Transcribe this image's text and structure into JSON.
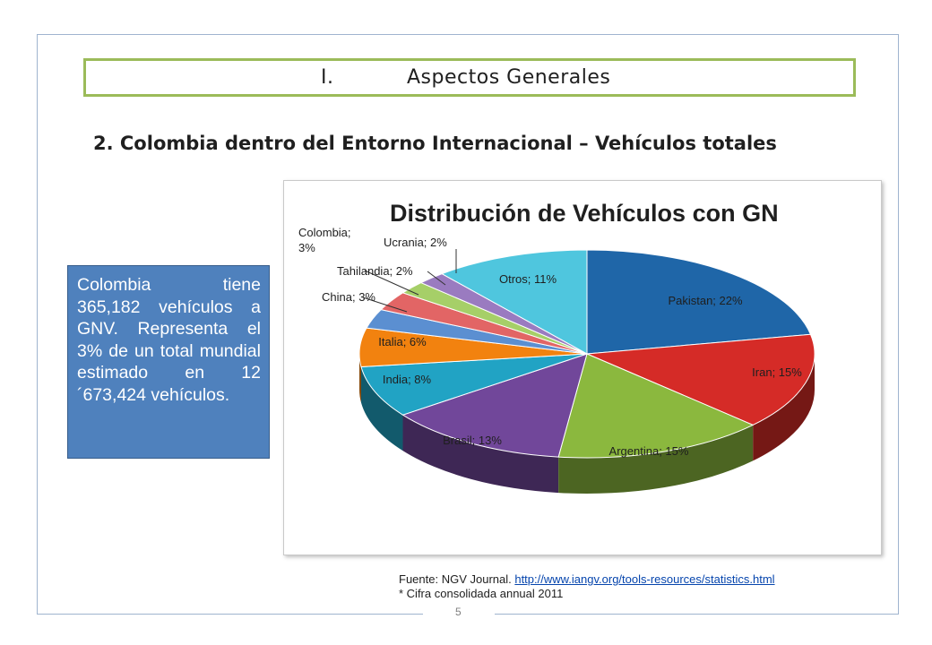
{
  "header": {
    "number": "I.",
    "title": "Aspectos Generales"
  },
  "section_title": "2. Colombia dentro del Entorno Internacional – Vehículos totales",
  "info_box": {
    "text": "Colombia tiene 365,182 vehículos a GNV. Representa el 3% de un total mundial estimado en 12´673,424 vehículos."
  },
  "source": {
    "prefix": "Fuente: NGV Journal. ",
    "link_text": "http://www.iangv.org/tools-resources/statistics.html",
    "note": "* Cifra consolidada annual 2011"
  },
  "page_number": "5",
  "chart_data": {
    "type": "pie",
    "title": "Distribución de Vehículos con GN",
    "slices": [
      {
        "label": "Pakistan; 22%",
        "value": 22,
        "color": "#1f66a8"
      },
      {
        "label": "Iran; 15%",
        "value": 15,
        "color": "#d52b27"
      },
      {
        "label": "Argentina; 15%",
        "value": 15,
        "color": "#8bb83e"
      },
      {
        "label": "Brasil; 13%",
        "value": 13,
        "color": "#71479a"
      },
      {
        "label": "India; 8%",
        "value": 8,
        "color": "#21a3c4"
      },
      {
        "label": "Italia; 6%",
        "value": 6,
        "color": "#f2820f"
      },
      {
        "label": "China; 3%",
        "value": 3,
        "color": "#5b8fd1"
      },
      {
        "label": "Colombia; 3%",
        "value": 3,
        "color": "#e26565"
      },
      {
        "label": "Tahilandia; 2%",
        "value": 2,
        "color": "#a6cf68"
      },
      {
        "label": "Ucrania; 2%",
        "value": 2,
        "color": "#9a7bc0"
      },
      {
        "label": "Otros; 11%",
        "value": 11,
        "color": "#4fc6de"
      }
    ]
  }
}
